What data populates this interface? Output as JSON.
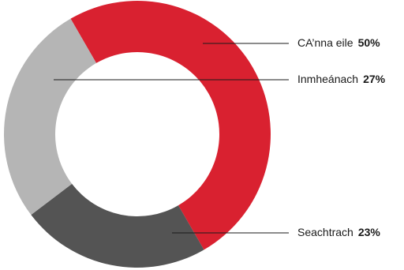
{
  "chart_data": {
    "type": "pie",
    "variant": "donut",
    "slices": [
      {
        "name": "CA’nna eile",
        "value": 50,
        "label": "50%",
        "color": "#d92130"
      },
      {
        "name": "Seachtrach",
        "value": 23,
        "label": "23%",
        "color": "#545454"
      },
      {
        "name": "Inmheánach",
        "value": 27,
        "label": "27%",
        "color": "#b5b5b5"
      }
    ],
    "legend": "leader-lines-right"
  }
}
